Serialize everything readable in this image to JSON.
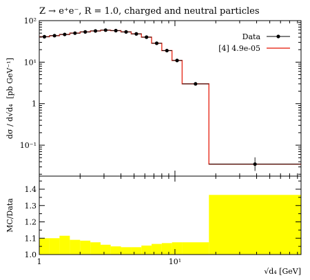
{
  "chart_data": {
    "type": "line",
    "title": "Z → e⁺e⁻, R = 1.0, charged and neutral particles",
    "xlabel": "√d₄ [GeV]",
    "top_ylabel_main": "dσ / d√d₄",
    "top_ylabel_unit": "[pb GeV⁻¹]",
    "bottom_ylabel": "MC/Data",
    "x_scale": "log",
    "y_scale_top": "log",
    "xlim": [
      1,
      85
    ],
    "ylim_top": [
      0.018,
      100
    ],
    "ylim_bottom": [
      1.0,
      1.48
    ],
    "x_ticks": [
      {
        "v": 1,
        "label": "1"
      },
      {
        "v": 10,
        "label": "10¹"
      }
    ],
    "y_ticks_top": [
      {
        "v": 100,
        "label": "10²"
      },
      {
        "v": 10,
        "label": "10¹"
      },
      {
        "v": 1,
        "label": "1"
      },
      {
        "v": 0.1,
        "label": "10⁻¹"
      }
    ],
    "y_ticks_bottom": [
      {
        "v": 1.0,
        "label": "1.0"
      },
      {
        "v": 1.1,
        "label": "1.1"
      },
      {
        "v": 1.2,
        "label": "1.2"
      },
      {
        "v": 1.3,
        "label": "1.3"
      },
      {
        "v": 1.4,
        "label": "1.4"
      }
    ],
    "legend": {
      "position": "top-right",
      "entries": [
        {
          "label": "Data",
          "kind": "marker"
        },
        {
          "label": "[4] 4.9e-05",
          "kind": "line"
        }
      ]
    },
    "colors": {
      "data": "#000000",
      "mc": "#e8392a",
      "band": "#ffff00"
    },
    "bins": [
      {
        "lo": 1.0,
        "hi": 1.19,
        "data": 41.0,
        "mc": 41.0,
        "ratio": 1.1
      },
      {
        "lo": 1.19,
        "hi": 1.41,
        "data": 43.5,
        "mc": 43.5,
        "ratio": 1.1
      },
      {
        "lo": 1.41,
        "hi": 1.68,
        "data": 46.5,
        "mc": 46.5,
        "ratio": 1.115
      },
      {
        "lo": 1.68,
        "hi": 2.0,
        "data": 50.0,
        "mc": 50.0,
        "ratio": 1.09
      },
      {
        "lo": 2.0,
        "hi": 2.38,
        "data": 53.5,
        "mc": 53.5,
        "ratio": 1.085
      },
      {
        "lo": 2.38,
        "hi": 2.83,
        "data": 56.5,
        "mc": 56.5,
        "ratio": 1.075
      },
      {
        "lo": 2.83,
        "hi": 3.36,
        "data": 59.0,
        "mc": 59.0,
        "ratio": 1.06
      },
      {
        "lo": 3.36,
        "hi": 4.0,
        "data": 57.5,
        "mc": 57.5,
        "ratio": 1.05
      },
      {
        "lo": 4.0,
        "hi": 4.76,
        "data": 53.5,
        "mc": 53.5,
        "ratio": 1.045
      },
      {
        "lo": 4.76,
        "hi": 5.66,
        "data": 48.0,
        "mc": 48.0,
        "ratio": 1.045
      },
      {
        "lo": 5.66,
        "hi": 6.73,
        "data": 40.0,
        "mc": 40.0,
        "ratio": 1.055
      },
      {
        "lo": 6.73,
        "hi": 8.0,
        "data": 28.5,
        "mc": 28.5,
        "ratio": 1.065
      },
      {
        "lo": 8.0,
        "hi": 9.51,
        "data": 19.0,
        "mc": 19.0,
        "ratio": 1.07
      },
      {
        "lo": 9.51,
        "hi": 11.3,
        "data": 11.0,
        "mc": 11.0,
        "ratio": 1.075
      },
      {
        "lo": 11.3,
        "hi": 17.8,
        "data": 3.0,
        "mc": 3.0,
        "ratio": 1.075
      },
      {
        "lo": 17.8,
        "hi": 85.0,
        "data": 0.035,
        "mc": 0.035,
        "ratio": 1.365,
        "err_lo": 0.024,
        "err_hi": 0.051
      }
    ]
  }
}
